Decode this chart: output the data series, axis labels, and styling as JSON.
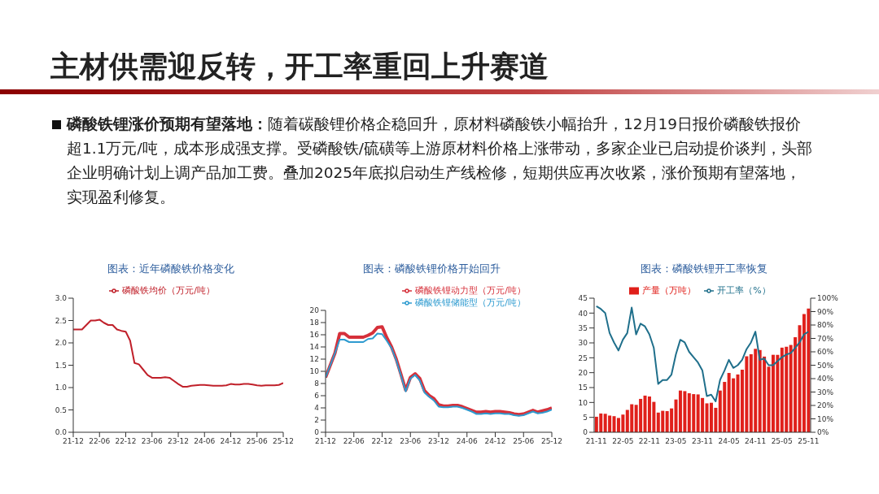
{
  "chart_data": [
    {
      "type": "other",
      "title": "主材供需迎反转，开工率重回上升赛道",
      "subtitle": "磷酸铁锂涨价预期有望落地：",
      "annotations": [
        "随着碳酸锂价格企稳回升，原材料磷酸铁小幅抬升，12月19日报价磷酸铁报价超1.1万元/吨，成本形成强支撑。受磷酸铁/硫磺等上游原材料价格上涨带动，多家企业已启动提价谈判，头部企业明确计划上调产品加工费。叠加2025年底拟启动生产线检修，短期供应再次收紧，涨价预期有望落地，实现盈利修复。"
      ]
    },
    {
      "type": "line",
      "title": "图表：近年磷酸铁价格变化",
      "x": [
        "2021-12",
        "2022-01",
        "2022-02",
        "2022-03",
        "2022-04",
        "2022-05",
        "2022-06",
        "2022-07",
        "2022-08",
        "2022-09",
        "2022-10",
        "2022-11",
        "2022-12",
        "2023-01",
        "2023-02",
        "2023-03",
        "2023-04",
        "2023-05",
        "2023-06",
        "2023-07",
        "2023-08",
        "2023-09",
        "2023-10",
        "2023-11",
        "2023-12",
        "2024-01",
        "2024-02",
        "2024-03",
        "2024-04",
        "2024-05",
        "2024-06",
        "2024-07",
        "2024-08",
        "2024-09",
        "2024-10",
        "2024-11",
        "2024-12",
        "2025-01",
        "2025-02",
        "2025-03",
        "2025-04",
        "2025-05",
        "2025-06",
        "2025-07",
        "2025-08",
        "2025-09",
        "2025-10",
        "2025-11",
        "2025-12"
      ],
      "series": [
        {
          "name": "磷酸铁均价（万元/吨）",
          "color": "#c0202a",
          "values": [
            2.3,
            2.3,
            2.3,
            2.4,
            2.5,
            2.5,
            2.52,
            2.45,
            2.4,
            2.4,
            2.3,
            2.27,
            2.25,
            2.05,
            1.55,
            1.52,
            1.4,
            1.28,
            1.22,
            1.22,
            1.22,
            1.23,
            1.22,
            1.15,
            1.08,
            1.02,
            1.02,
            1.04,
            1.05,
            1.06,
            1.06,
            1.05,
            1.04,
            1.04,
            1.04,
            1.05,
            1.08,
            1.07,
            1.07,
            1.08,
            1.08,
            1.07,
            1.05,
            1.04,
            1.05,
            1.05,
            1.05,
            1.06,
            1.1
          ]
        }
      ],
      "xlim": [
        "2021-12",
        "2025-12"
      ],
      "xticks": [
        {
          "value": "2021-12",
          "label": "21-12"
        },
        {
          "value": "2022-06",
          "label": "22-06"
        },
        {
          "value": "2022-12",
          "label": "22-12"
        },
        {
          "value": "2023-06",
          "label": "23-06"
        },
        {
          "value": "2023-12",
          "label": "23-12"
        },
        {
          "value": "2024-06",
          "label": "24-06"
        },
        {
          "value": "2024-12",
          "label": "24-12"
        },
        {
          "value": "2025-06",
          "label": "25-06"
        },
        {
          "value": "2025-12",
          "label": "25-12"
        }
      ],
      "ylim": [
        0,
        3
      ],
      "yticks": [
        {
          "value": 0,
          "label": "0.0"
        },
        {
          "value": 0.5,
          "label": "0.5"
        },
        {
          "value": 1,
          "label": "1.0"
        },
        {
          "value": 1.5,
          "label": "1.5"
        },
        {
          "value": 2,
          "label": "2.0"
        },
        {
          "value": 2.5,
          "label": "2.5"
        },
        {
          "value": 3,
          "label": "3.0"
        }
      ],
      "legend": "top"
    },
    {
      "type": "line",
      "title": "图表：磷酸铁锂价格开始回升",
      "x": [
        "2021-12",
        "2022-01",
        "2022-02",
        "2022-03",
        "2022-04",
        "2022-05",
        "2022-06",
        "2022-07",
        "2022-08",
        "2022-09",
        "2022-10",
        "2022-11",
        "2022-12",
        "2023-01",
        "2023-02",
        "2023-03",
        "2023-04",
        "2023-05",
        "2023-06",
        "2023-07",
        "2023-08",
        "2023-09",
        "2023-10",
        "2023-11",
        "2023-12",
        "2024-01",
        "2024-02",
        "2024-03",
        "2024-04",
        "2024-05",
        "2024-06",
        "2024-07",
        "2024-08",
        "2024-09",
        "2024-10",
        "2024-11",
        "2024-12",
        "2025-01",
        "2025-02",
        "2025-03",
        "2025-04",
        "2025-05",
        "2025-06",
        "2025-07",
        "2025-08",
        "2025-09",
        "2025-10",
        "2025-11",
        "2025-12"
      ],
      "series": [
        {
          "name": "磷酸铁锂动力型（万元/吨）",
          "color": "#d6303a",
          "values": [
            9,
            11,
            13,
            16.2,
            16.2,
            15.6,
            15.6,
            15.6,
            15.6,
            15.9,
            16.3,
            17.2,
            17.3,
            15.5,
            14,
            12,
            9.5,
            6.9,
            9,
            9.6,
            8.8,
            6.8,
            6,
            5.5,
            4.5,
            4.3,
            4.3,
            4.4,
            4.4,
            4.2,
            3.9,
            3.6,
            3.3,
            3.3,
            3.4,
            3.3,
            3.4,
            3.4,
            3.3,
            3.2,
            3,
            2.9,
            3,
            3.3,
            3.6,
            3.3,
            3.5,
            3.7,
            4
          ]
        },
        {
          "name": "磷酸铁锂储能型（万元/吨）",
          "color": "#2e9bd0",
          "values": [
            9,
            11,
            13,
            15.2,
            15.2,
            14.8,
            14.8,
            14.8,
            14.8,
            15.3,
            15.4,
            16.2,
            16.1,
            15,
            13.8,
            11.8,
            9.3,
            6.7,
            8.8,
            9.4,
            8.5,
            6.5,
            5.8,
            5.2,
            4.2,
            4.1,
            4.1,
            4.2,
            4.2,
            4,
            3.7,
            3.4,
            3,
            3,
            3.1,
            3,
            3.1,
            3.1,
            3,
            3,
            2.8,
            2.7,
            2.8,
            3.1,
            3.4,
            3.1,
            3.2,
            3.4,
            3.7
          ]
        }
      ],
      "xlim": [
        "2021-12",
        "2025-12"
      ],
      "xticks": [
        {
          "value": "2021-12",
          "label": "21-12"
        },
        {
          "value": "2022-06",
          "label": "22-06"
        },
        {
          "value": "2022-12",
          "label": "22-12"
        },
        {
          "value": "2023-06",
          "label": "23-06"
        },
        {
          "value": "2023-12",
          "label": "23-12"
        },
        {
          "value": "2024-06",
          "label": "24-06"
        },
        {
          "value": "2024-12",
          "label": "24-12"
        },
        {
          "value": "2025-06",
          "label": "25-06"
        },
        {
          "value": "2025-12",
          "label": "25-12"
        }
      ],
      "ylim": [
        0,
        20
      ],
      "yticks": [
        0,
        2,
        4,
        6,
        8,
        10,
        12,
        14,
        16,
        18,
        20
      ],
      "legend": "top right"
    },
    {
      "type": "bar",
      "title": "图表：磷酸铁锂开工率恢复",
      "categories": [
        "21-11",
        null,
        null,
        null,
        null,
        null,
        "22-05",
        null,
        null,
        null,
        null,
        null,
        "22-11",
        null,
        null,
        null,
        null,
        null,
        "23-05",
        null,
        null,
        null,
        null,
        null,
        "23-11",
        null,
        null,
        null,
        null,
        null,
        "24-05",
        null,
        null,
        null,
        null,
        null,
        "24-11",
        null,
        null,
        null,
        null,
        null,
        "25-05",
        null,
        null,
        null,
        null,
        null,
        "25-11"
      ],
      "series": [
        {
          "name": "产量（万吨）",
          "type": "bar",
          "color": "#e0201b",
          "values": [
            5.2,
            6.3,
            6.2,
            5.6,
            5.4,
            4.8,
            5.9,
            7.5,
            9.4,
            9.2,
            11.2,
            12.3,
            12,
            10.2,
            6.6,
            7.2,
            7.1,
            8,
            11,
            14,
            13.8,
            13.1,
            12.8,
            12.7,
            11.5,
            9.7,
            9.9,
            8.2,
            14,
            16.9,
            19.9,
            18.1,
            19.4,
            21,
            25.5,
            26.2,
            28,
            27.6,
            25.4,
            22,
            26,
            26,
            28.4,
            28.7,
            29.3,
            31.9,
            35.9,
            39.7,
            41.5
          ]
        },
        {
          "name": "开工率（%）",
          "type": "line",
          "axis": "y2",
          "color": "#1f6f8b",
          "values": [
            94,
            92,
            89,
            74,
            67,
            61,
            69,
            74,
            93,
            73,
            81,
            79,
            73,
            63,
            36,
            39,
            39,
            43,
            58,
            69,
            67,
            60,
            56,
            52,
            46,
            27,
            28,
            23,
            39,
            46,
            54,
            48,
            50,
            54,
            62,
            67,
            75,
            54,
            55,
            50,
            50,
            53,
            56,
            58,
            59,
            63,
            67,
            73,
            75
          ]
        }
      ],
      "ylim": [
        0,
        45
      ],
      "yticks": [
        0,
        5,
        10,
        15,
        20,
        25,
        30,
        35,
        40,
        45
      ],
      "y2lim": [
        0,
        100
      ],
      "y2ticks": [
        {
          "value": 0,
          "label": "0%"
        },
        {
          "value": 10,
          "label": "10%"
        },
        {
          "value": 20,
          "label": "20%"
        },
        {
          "value": 30,
          "label": "30%"
        },
        {
          "value": 40,
          "label": "40%"
        },
        {
          "value": 50,
          "label": "50%"
        },
        {
          "value": 60,
          "label": "60%"
        },
        {
          "value": 70,
          "label": "70%"
        },
        {
          "value": 80,
          "label": "80%"
        },
        {
          "value": 90,
          "label": "90%"
        },
        {
          "value": 100,
          "label": "100%"
        }
      ],
      "legend": "top"
    }
  ]
}
